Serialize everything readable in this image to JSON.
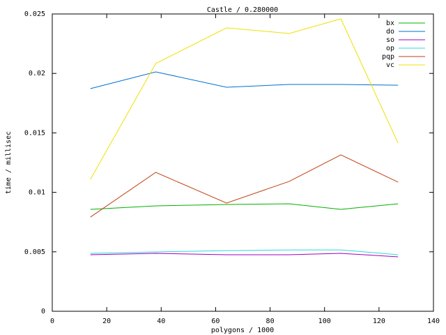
{
  "chart_data": {
    "type": "line",
    "title": "Castle / 0.280000",
    "xlabel": "polygons / 1000",
    "ylabel": "time / millisec",
    "x": [
      14,
      38,
      64,
      87,
      106,
      127
    ],
    "series": [
      {
        "name": "bx",
        "color": "#00b000",
        "values": [
          0.00857,
          0.00886,
          0.00898,
          0.00904,
          0.00857,
          0.00904
        ]
      },
      {
        "name": "do",
        "color": "#0070d0",
        "values": [
          0.01872,
          0.02013,
          0.01884,
          0.01907,
          0.01907,
          0.01901
        ]
      },
      {
        "name": "so",
        "color": "#a000c0",
        "values": [
          0.00475,
          0.00487,
          0.00475,
          0.00475,
          0.00487,
          0.00458
        ]
      },
      {
        "name": "op",
        "color": "#30d8d8",
        "values": [
          0.00487,
          0.00499,
          0.0051,
          0.00516,
          0.00516,
          0.00475
        ]
      },
      {
        "name": "pqp",
        "color": "#c04010",
        "values": [
          0.00792,
          0.01168,
          0.0091,
          0.01092,
          0.01315,
          0.01086
        ]
      },
      {
        "name": "vc",
        "color": "#f0e000",
        "values": [
          0.01109,
          0.02083,
          0.02383,
          0.02336,
          0.02459,
          0.01414
        ]
      }
    ],
    "xlim": [
      0,
      140
    ],
    "xticks": [
      0,
      20,
      40,
      60,
      80,
      100,
      120,
      140
    ],
    "ylim": [
      0,
      0.025
    ],
    "yticks": [
      0,
      0.005,
      0.01,
      0.015,
      0.02,
      0.025
    ],
    "legend": "upper right",
    "grid": false
  }
}
